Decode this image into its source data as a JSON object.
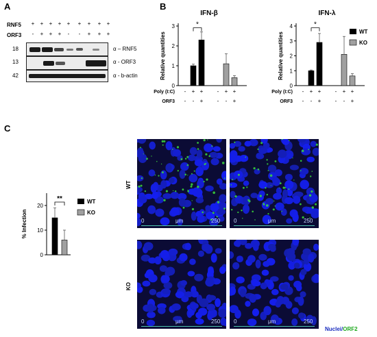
{
  "panel_A": {
    "letter": "A",
    "row_labels": [
      "RNF5",
      "ORF3"
    ],
    "rnf5_signs": [
      "+",
      "+",
      "+",
      "+",
      "+",
      "+",
      "+",
      "+",
      "+"
    ],
    "orf3_signs": [
      "-",
      "+",
      "+",
      "+",
      "-",
      "-",
      "+",
      "+",
      "+"
    ],
    "ladder": [
      "18",
      "13",
      "42"
    ],
    "blot_labels": [
      "α – RNF5",
      "α - ORF3",
      "α - b-actin"
    ]
  },
  "panel_B": {
    "letter": "B",
    "charts": [
      "IFN-β",
      "IFN-λ"
    ],
    "row_label_poly": "Poly (I:C)",
    "row_label_orf3": "ORF3",
    "poly_signs": [
      "-",
      "+",
      "+",
      "-",
      "+",
      "+"
    ],
    "orf3_signs": [
      "-",
      "-",
      "+",
      "-",
      "-",
      "+"
    ],
    "legend": [
      "WT",
      "KO"
    ],
    "star": "*"
  },
  "panel_C": {
    "letter": "C",
    "legend": [
      "WT",
      "KO"
    ],
    "star": "**",
    "row_labels": [
      "WT",
      "KO"
    ],
    "scale": {
      "start": "0",
      "unit": "μm",
      "end": "250"
    },
    "caption_nuclei": "Nuclei/",
    "caption_orf2": "ORF2"
  },
  "chart_data": [
    {
      "type": "bar",
      "title": "IFN-β",
      "ylabel": "Relative quantities",
      "ylim": [
        0,
        3
      ],
      "yticks": [
        "0",
        "1",
        "2",
        "3"
      ],
      "series": [
        {
          "name": "WT",
          "values": [
            1.0,
            2.3
          ]
        },
        {
          "name": "KO",
          "values": [
            1.1,
            0.4
          ]
        }
      ],
      "errors": {
        "WT": [
          0.08,
          0.4
        ],
        "KO": [
          0.5,
          0.1
        ]
      },
      "color_wt": "#000000",
      "color_ko": "#a0a0a0"
    },
    {
      "type": "bar",
      "title": "IFN-λ",
      "ylabel": "Relative quantities",
      "ylim": [
        0,
        4
      ],
      "yticks": [
        "0",
        "1",
        "2",
        "3",
        "4"
      ],
      "series": [
        {
          "name": "WT",
          "values": [
            1.0,
            2.9
          ]
        },
        {
          "name": "KO",
          "values": [
            2.1,
            0.65
          ]
        }
      ],
      "errors": {
        "WT": [
          0.05,
          0.6
        ],
        "KO": [
          1.2,
          0.15
        ]
      },
      "color_wt": "#000000",
      "color_ko": "#a0a0a0"
    },
    {
      "type": "bar",
      "title": "",
      "ylabel": "% Infection",
      "ylim": [
        0,
        25
      ],
      "yticks": [
        "0",
        "10",
        "20"
      ],
      "series": [
        {
          "name": "WT",
          "values": [
            15
          ]
        },
        {
          "name": "KO",
          "values": [
            6
          ]
        }
      ],
      "errors": {
        "WT": [
          4
        ],
        "KO": [
          4
        ]
      },
      "color_wt": "#000000",
      "color_ko": "#a0a0a0"
    }
  ]
}
